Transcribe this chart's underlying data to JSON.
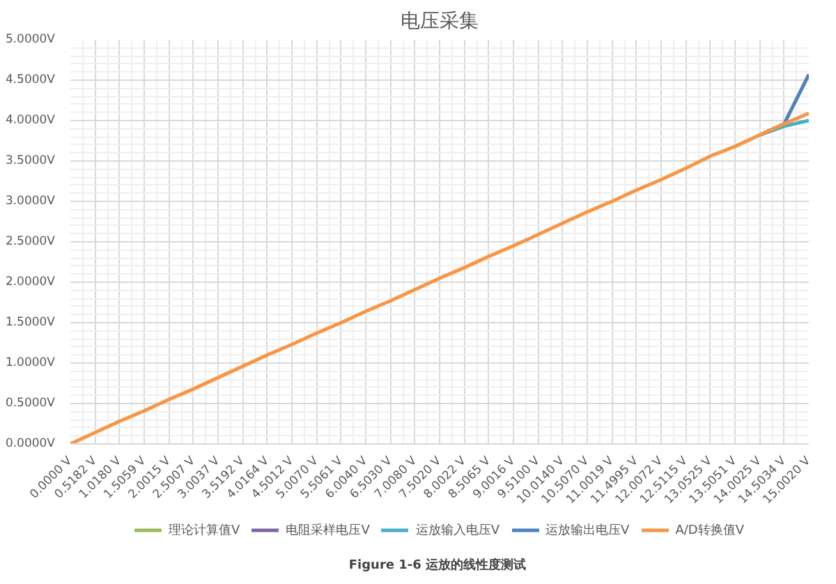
{
  "chart_data": {
    "type": "line",
    "title": "电压采集",
    "annotations": [
      "Figure 1-6  运放的线性度测试"
    ],
    "categories": [
      "0.0000 V",
      "0.5182 V",
      "1.0180 V",
      "1.5059 V",
      "2.0015 V",
      "2.5007 V",
      "3.0037 V",
      "3.5192 V",
      "4.0164 V",
      "4.5012 V",
      "5.0070 V",
      "5.5061 V",
      "6.0040 V",
      "6.5030 V",
      "7.0080 V",
      "7.5020 V",
      "8.0022 V",
      "8.5065 V",
      "9.0016 V",
      "9.5100 V",
      "10.0140 V",
      "10.5070 V",
      "11.0019 V",
      "11.4995 V",
      "12.0072 V",
      "12.5115 V",
      "13.0525 V",
      "13.5051 V",
      "14.0025 V",
      "14.5034 V",
      "15.0020 V"
    ],
    "series": [
      {
        "name": "理论计算值V",
        "color": "#9bbb59",
        "values": [
          null,
          null,
          null,
          null,
          null,
          null,
          null,
          null,
          null,
          null,
          null,
          null,
          null,
          null,
          null,
          null,
          null,
          null,
          null,
          null,
          null,
          null,
          null,
          null,
          null,
          null,
          null,
          null,
          null,
          null,
          null
        ]
      },
      {
        "name": "电阻采样电压V",
        "color": "#8064a2",
        "values": [
          null,
          null,
          null,
          null,
          null,
          null,
          null,
          null,
          null,
          null,
          null,
          null,
          null,
          null,
          null,
          null,
          null,
          null,
          null,
          null,
          null,
          null,
          null,
          null,
          null,
          null,
          null,
          null,
          null,
          null,
          null
        ]
      },
      {
        "name": "运放输入电压V",
        "color": "#4bacc6",
        "values": [
          null,
          null,
          null,
          null,
          null,
          null,
          null,
          null,
          null,
          null,
          null,
          null,
          null,
          null,
          null,
          null,
          null,
          null,
          null,
          null,
          null,
          null,
          null,
          null,
          null,
          null,
          null,
          null,
          3.82,
          3.93,
          4.0
        ]
      },
      {
        "name": "运放输出电压V",
        "color": "#4f81bd",
        "values": [
          null,
          null,
          null,
          null,
          null,
          null,
          null,
          null,
          null,
          null,
          null,
          null,
          null,
          null,
          null,
          null,
          null,
          null,
          null,
          null,
          null,
          null,
          null,
          null,
          null,
          null,
          null,
          null,
          3.82,
          3.96,
          4.57
        ]
      },
      {
        "name": "A/D转换值V",
        "color": "#f79646",
        "values": [
          0,
          0.14,
          0.28,
          0.41,
          0.55,
          0.68,
          0.82,
          0.96,
          1.1,
          1.23,
          1.37,
          1.5,
          1.64,
          1.77,
          1.91,
          2.05,
          2.18,
          2.32,
          2.45,
          2.59,
          2.73,
          2.87,
          3.0,
          3.14,
          3.27,
          3.41,
          3.56,
          3.68,
          3.82,
          3.96,
          4.09
        ]
      }
    ],
    "ylim": [
      0,
      5
    ],
    "yticks": [
      {
        "value": 0,
        "label": "0.0000V"
      },
      {
        "value": 0.5,
        "label": "0.5000V"
      },
      {
        "value": 1,
        "label": "1.0000V"
      },
      {
        "value": 1.5,
        "label": "1.5000V"
      },
      {
        "value": 2,
        "label": "2.0000V"
      },
      {
        "value": 2.5,
        "label": "2.5000V"
      },
      {
        "value": 3,
        "label": "3.0000V"
      },
      {
        "value": 3.5,
        "label": "3.5000V"
      },
      {
        "value": 4,
        "label": "4.0000V"
      },
      {
        "value": 4.5,
        "label": "4.5000V"
      },
      {
        "value": 5,
        "label": "5.0000V"
      }
    ],
    "grid": true,
    "legend": "bottom",
    "marker": "none",
    "line_style": "solid"
  }
}
